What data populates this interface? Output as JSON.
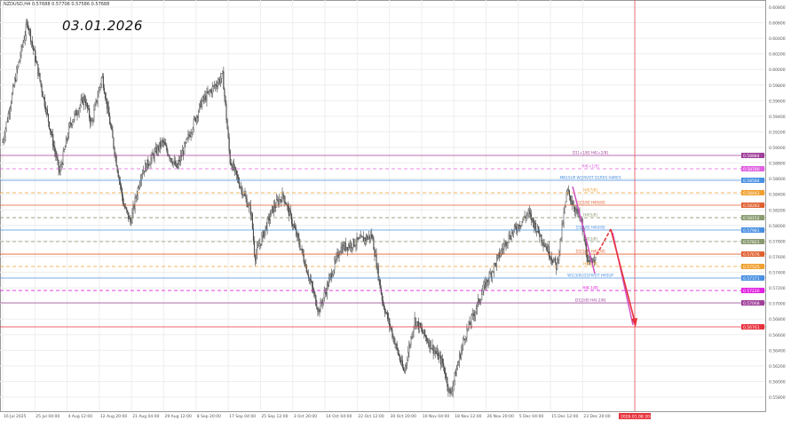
{
  "header": {
    "symbol_info": "NZDUSD,H4 0.57688 0.57706 0.57586 0.57688",
    "date_note": "03.01.2026"
  },
  "colors": {
    "candle": "#444444",
    "grid": "#eeeeee",
    "forecast_red": "#e8323c",
    "forecast_pink": "#d04fc0",
    "vline": "#e05050"
  },
  "chart_data": {
    "type": "candlestick",
    "title": "NZDUSD,H4",
    "ylim": [
      0.558,
      0.608
    ],
    "yticks": [
      "0.60800",
      "0.60600",
      "0.60400",
      "0.60200",
      "0.60000",
      "0.59800",
      "0.59600",
      "0.59400",
      "0.59200",
      "0.59000",
      "0.58800",
      "0.58600",
      "0.58400",
      "0.58200",
      "0.58000",
      "0.57800",
      "0.57600",
      "0.57400",
      "0.57200",
      "0.57000",
      "0.56800",
      "0.56600",
      "0.56400",
      "0.56200",
      "0.56000",
      "0.55800"
    ],
    "xticks": [
      "16 Jul 2025",
      "25 Jul 04:00",
      "4 Aug 12:00",
      "12 Aug 20:00",
      "21 Aug 04:00",
      "29 Aug 12:00",
      "8 Sep 20:00",
      "17 Sep 04:00",
      "25 Sep 12:00",
      "3 Oct 20:00",
      "14 Oct 04:00",
      "22 Oct 12:00",
      "30 Oct 20:00",
      "10 Nov 04:00",
      "18 Nov 12:00",
      "26 Nov 20:00",
      "5 Dec 04:00",
      "15 Dec 12:00",
      "23 Dec 20:00"
    ],
    "current_time_label": "2026.01.08 20:00",
    "price_path": [
      [
        "2025-07-16",
        0.5907
      ],
      [
        "2025-07-20",
        0.5998
      ],
      [
        "2025-07-23",
        0.6061
      ],
      [
        "2025-07-27",
        0.5975
      ],
      [
        "2025-08-01",
        0.5867
      ],
      [
        "2025-08-04",
        0.593
      ],
      [
        "2025-08-08",
        0.5964
      ],
      [
        "2025-08-10",
        0.593
      ],
      [
        "2025-08-13",
        0.5992
      ],
      [
        "2025-08-19",
        0.5827
      ],
      [
        "2025-08-21",
        0.5804
      ],
      [
        "2025-08-24",
        0.5867
      ],
      [
        "2025-08-30",
        0.5907
      ],
      [
        "2025-09-03",
        0.5873
      ],
      [
        "2025-09-10",
        0.5958
      ],
      [
        "2025-09-16",
        0.5992
      ],
      [
        "2025-09-18",
        0.5884
      ],
      [
        "2025-09-24",
        0.5816
      ],
      [
        "2025-09-25",
        0.5759
      ],
      [
        "2025-09-30",
        0.5821
      ],
      [
        "2025-10-03",
        0.5839
      ],
      [
        "2025-10-08",
        0.577
      ],
      [
        "2025-10-13",
        0.569
      ],
      [
        "2025-10-19",
        0.577
      ],
      [
        "2025-10-28",
        0.5787
      ],
      [
        "2025-10-31",
        0.5702
      ],
      [
        "2025-11-06",
        0.5611
      ],
      [
        "2025-11-09",
        0.5679
      ],
      [
        "2025-11-17",
        0.5622
      ],
      [
        "2025-11-19",
        0.5582
      ],
      [
        "2025-11-23",
        0.5656
      ],
      [
        "2025-11-29",
        0.5725
      ],
      [
        "2025-12-05",
        0.5782
      ],
      [
        "2025-12-11",
        0.5816
      ],
      [
        "2025-12-15",
        0.5782
      ],
      [
        "2025-12-19",
        0.5747
      ],
      [
        "2025-12-22",
        0.5844
      ],
      [
        "2025-12-26",
        0.5804
      ],
      [
        "2025-12-28",
        0.5747
      ],
      [
        "2025-12-30",
        0.5764
      ]
    ],
    "levels": [
      {
        "price": 0.58898,
        "label": "0.58884",
        "text": "D1[+1/8] H4[+2/8]",
        "color": "#a0409a",
        "dash": false
      },
      {
        "price": 0.58727,
        "label": "0.58780",
        "text": "H4[+1/8]",
        "color": "#e060e0",
        "dash": true
      },
      {
        "price": 0.58579,
        "label": "0.58584",
        "text": "MN1SUP W1PIVOT D1RES H4RES",
        "color": "#4a90e2",
        "dash": false
      },
      {
        "price": 0.5842,
        "label": "0.58442",
        "text": "H4[7/8]",
        "color": "#f0a030",
        "dash": true
      },
      {
        "price": 0.5826,
        "label": "0.58283",
        "text": "D1[5/8] H4[6/8]",
        "color": "#e06030",
        "dash": false
      },
      {
        "price": 0.581,
        "label": "0.58152",
        "text": "H4[5/8]",
        "color": "#8a9a70",
        "dash": true
      },
      {
        "price": 0.57941,
        "label": "0.57981",
        "text": "D1[4/8] H4[4/8]",
        "color": "#4a90e2",
        "dash": false
      },
      {
        "price": 0.57793,
        "label": "0.57821",
        "text": "H4[3/8]",
        "color": "#8a9a70",
        "dash": true
      },
      {
        "price": 0.57633,
        "label": "0.57676",
        "text": "D1[3/8] H4[2/8]",
        "color": "#e06030",
        "dash": false
      },
      {
        "price": 0.57474,
        "label": "0.57525",
        "text": "H4[1/8]",
        "color": "#f0a030",
        "dash": true
      },
      {
        "price": 0.57326,
        "label": "0.57371",
        "text": "W1[3/8] D1PIVOT H4SUP",
        "color": "#4a90e2",
        "dash": false
      },
      {
        "price": 0.57166,
        "label": "0.57220",
        "text": "H4[-1/8]",
        "color": "#e020e0",
        "dash": true
      },
      {
        "price": 0.57007,
        "label": "0.57068",
        "text": "D1[2/8] H4[-2/8]",
        "color": "#a0409a",
        "dash": false
      },
      {
        "price": 0.567,
        "label": "0.56761",
        "text": "",
        "color": "#e8323c",
        "dash": false
      }
    ]
  }
}
